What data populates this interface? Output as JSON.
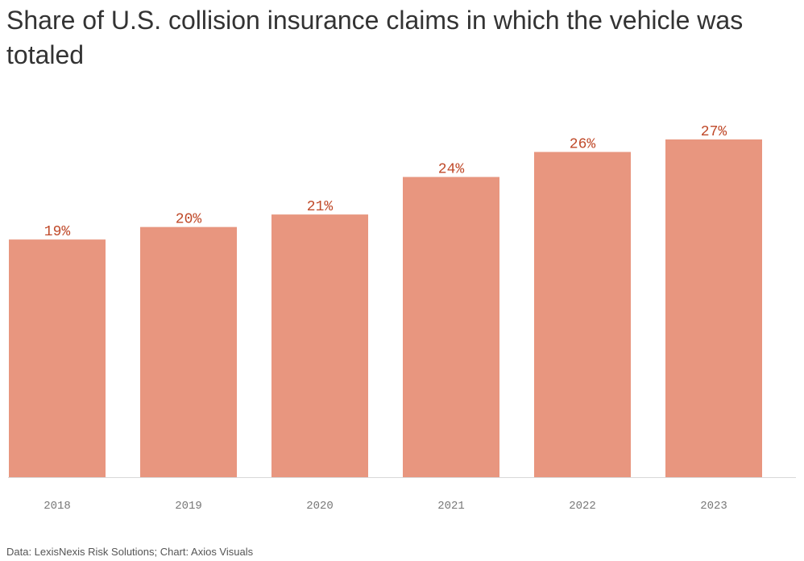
{
  "title": "Share of U.S. collision insurance claims in which the vehicle was totaled",
  "source": "Data: LexisNexis Risk Solutions; Chart: Axios Visuals",
  "colors": {
    "bar": "#e8967f",
    "value_label": "#c04a2a",
    "axis_label": "#777777",
    "baseline": "#d8d8d8"
  },
  "chart_data": {
    "type": "bar",
    "title": "Share of U.S. collision insurance claims in which the vehicle was totaled",
    "categories": [
      "2018",
      "2019",
      "2020",
      "2021",
      "2022",
      "2023"
    ],
    "values": [
      19,
      20,
      21,
      24,
      26,
      27
    ],
    "value_labels": [
      "19%",
      "20%",
      "21%",
      "24%",
      "26%",
      "27%"
    ],
    "unit": "%",
    "xlabel": "",
    "ylabel": "",
    "ylim": [
      0,
      27
    ],
    "grid": false,
    "legend": "none"
  }
}
